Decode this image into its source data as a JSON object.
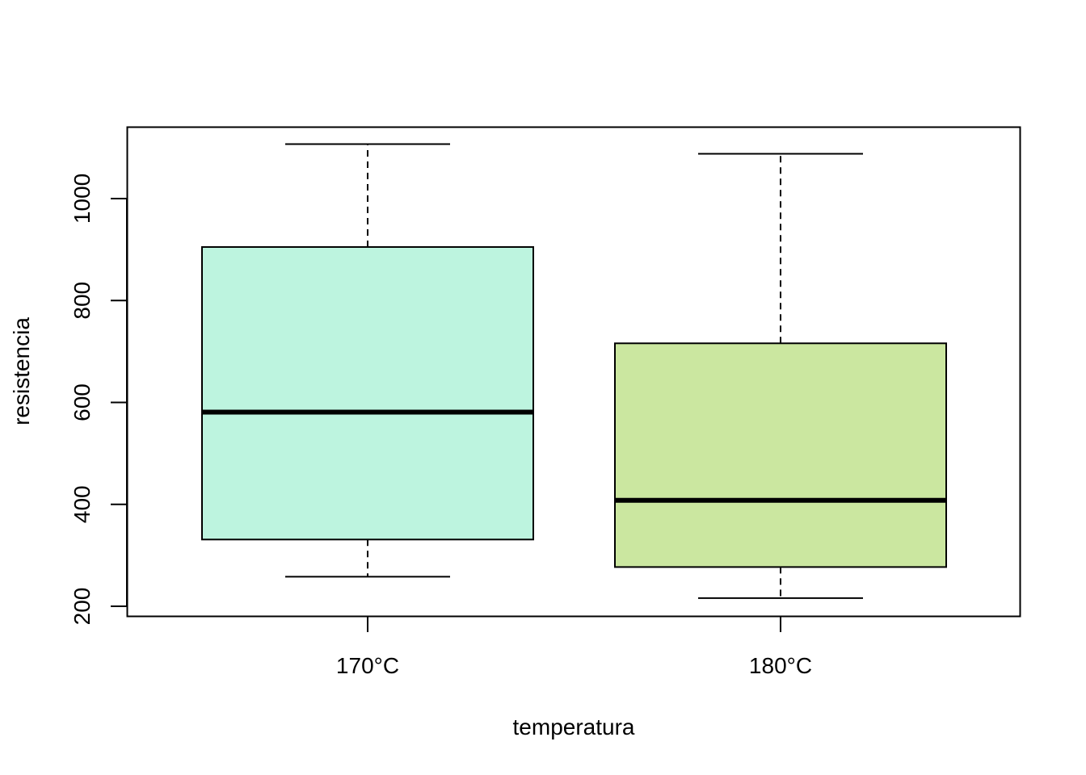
{
  "chart_data": {
    "type": "boxplot",
    "xlabel": "temperatura",
    "ylabel": "resistencia",
    "ylim": [
      180,
      1140
    ],
    "yticks": [
      200,
      400,
      600,
      800,
      1000
    ],
    "grid": false,
    "legend": "none",
    "categories": [
      "170°C",
      "180°C"
    ],
    "boxes": [
      {
        "category": "170°C",
        "min": 258,
        "q1": 331,
        "median": 581,
        "q3": 905,
        "max": 1107,
        "color": "#BDF4DF"
      },
      {
        "category": "180°C",
        "min": 216,
        "q1": 277,
        "median": 408,
        "q3": 716,
        "max": 1088,
        "color": "#CBE7A0"
      }
    ]
  }
}
